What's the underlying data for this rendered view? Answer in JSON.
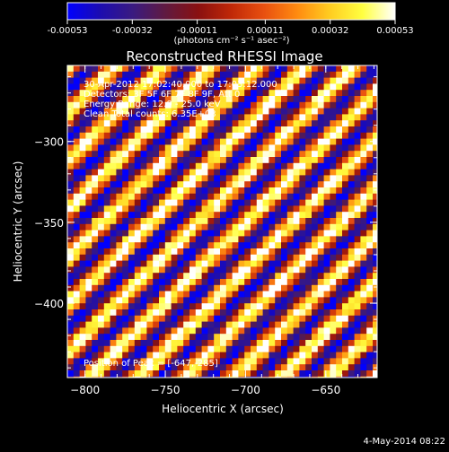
{
  "chart_data": {
    "type": "heatmap",
    "title": "Reconstructed RHESSI Image",
    "xlabel": "Heliocentric X (arcsec)",
    "ylabel": "Heliocentric Y (arcsec)",
    "xlim": [
      -811,
      -618
    ],
    "ylim": [
      -446,
      -253
    ],
    "x_ticks": [
      -800,
      -750,
      -700,
      -650
    ],
    "y_ticks": [
      -300,
      -350,
      -400
    ],
    "colorbar": {
      "min": -0.00053,
      "max": 0.00053,
      "ticks": [
        -0.00053,
        -0.00032,
        -0.00011,
        0.00011,
        0.00032,
        0.00053
      ],
      "tick_labels": [
        "-0.00053",
        "-0.00032",
        "-0.00011",
        "0.00011",
        "0.00032",
        "0.00053"
      ],
      "unit_label": "(photons cm⁻² s⁻¹ asec⁻²)",
      "colormap": [
        "#0000ff",
        "#1c0cb0",
        "#3a1a80",
        "#601a40",
        "#8a1010",
        "#c02808",
        "#e85010",
        "#ff8a10",
        "#ffcc20",
        "#ffff40",
        "#ffffff"
      ]
    },
    "info_lines": [
      "30-Apr-2012 17:02:40.000 to 17:03:12.000",
      "Detectors: 3F 5F 6F 7F 8F 9F, Att 0",
      "Energy Range: 12.0 - 25.0 keV",
      "Clean     Total counts: 6.35E+03"
    ],
    "peak_label": "Position of Peak = [-647,-285]",
    "grid": false,
    "pattern": {
      "description_free": true,
      "stripe_period_arcsec": 21,
      "stripe_direction": [
        1,
        1
      ]
    }
  },
  "timestamp": "4-May-2014 08:22"
}
